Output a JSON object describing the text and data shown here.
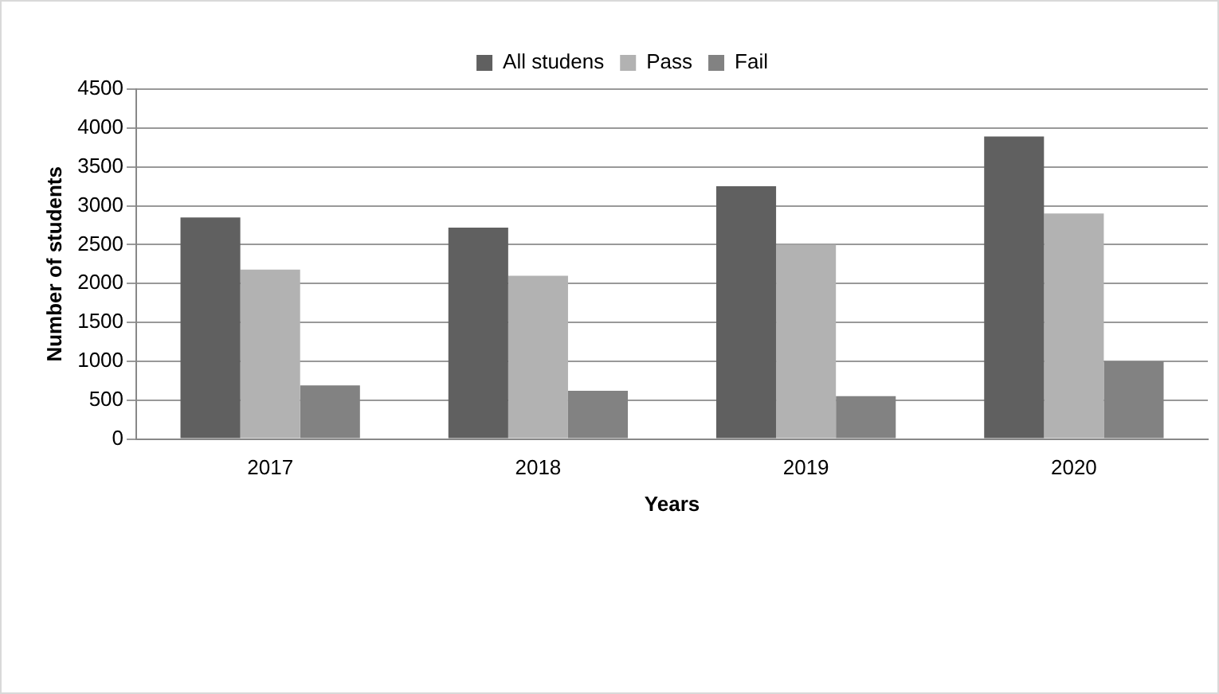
{
  "chart_data": {
    "type": "bar",
    "xlabel": "Years",
    "ylabel": "Number of students",
    "categories": [
      "2017",
      "2018",
      "2019",
      "2020"
    ],
    "series": [
      {
        "name": "All studens",
        "color": "#606060",
        "values": [
          2850,
          2720,
          3250,
          3890
        ]
      },
      {
        "name": "Pass",
        "color": "#b2b2b2",
        "values": [
          2180,
          2100,
          2500,
          2900
        ]
      },
      {
        "name": "Fail",
        "color": "#828282",
        "values": [
          690,
          620,
          550,
          1000
        ]
      }
    ],
    "ylim": [
      0,
      4500
    ],
    "yticks": [
      0,
      500,
      1000,
      1500,
      2000,
      2500,
      3000,
      3500,
      4000,
      4500
    ],
    "grid": "y",
    "legend": "top"
  }
}
